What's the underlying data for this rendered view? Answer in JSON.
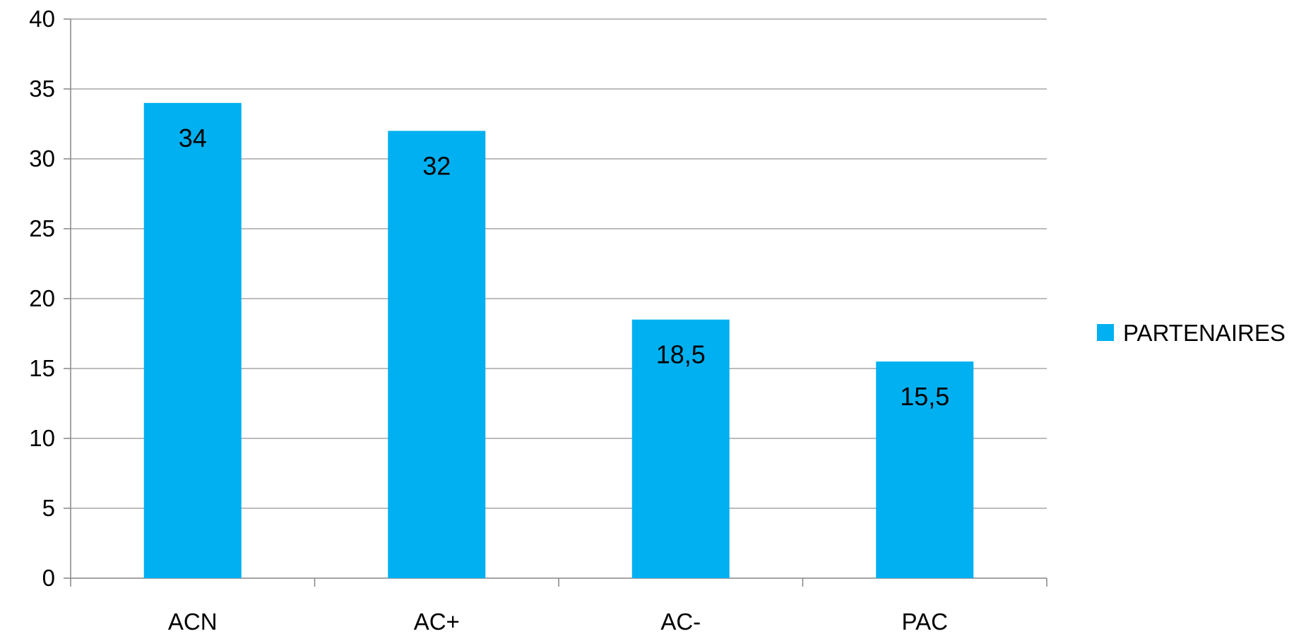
{
  "chart_data": {
    "type": "bar",
    "categories": [
      "ACN",
      "AC+",
      "AC-",
      "PAC"
    ],
    "series": [
      {
        "name": "PARTENAIRES",
        "values": [
          34,
          32,
          18.5,
          15.5
        ],
        "labels": [
          "34",
          "32",
          "18,5",
          "15,5"
        ],
        "color": "#00B0F0"
      }
    ],
    "title": "",
    "xlabel": "",
    "ylabel": "",
    "ylim": [
      0,
      40
    ],
    "yticks": [
      0,
      5,
      10,
      15,
      20,
      25,
      30,
      35,
      40
    ],
    "grid": true,
    "legend": "right",
    "gridColor": "#A6A6A6",
    "axisColor": "#868686"
  }
}
